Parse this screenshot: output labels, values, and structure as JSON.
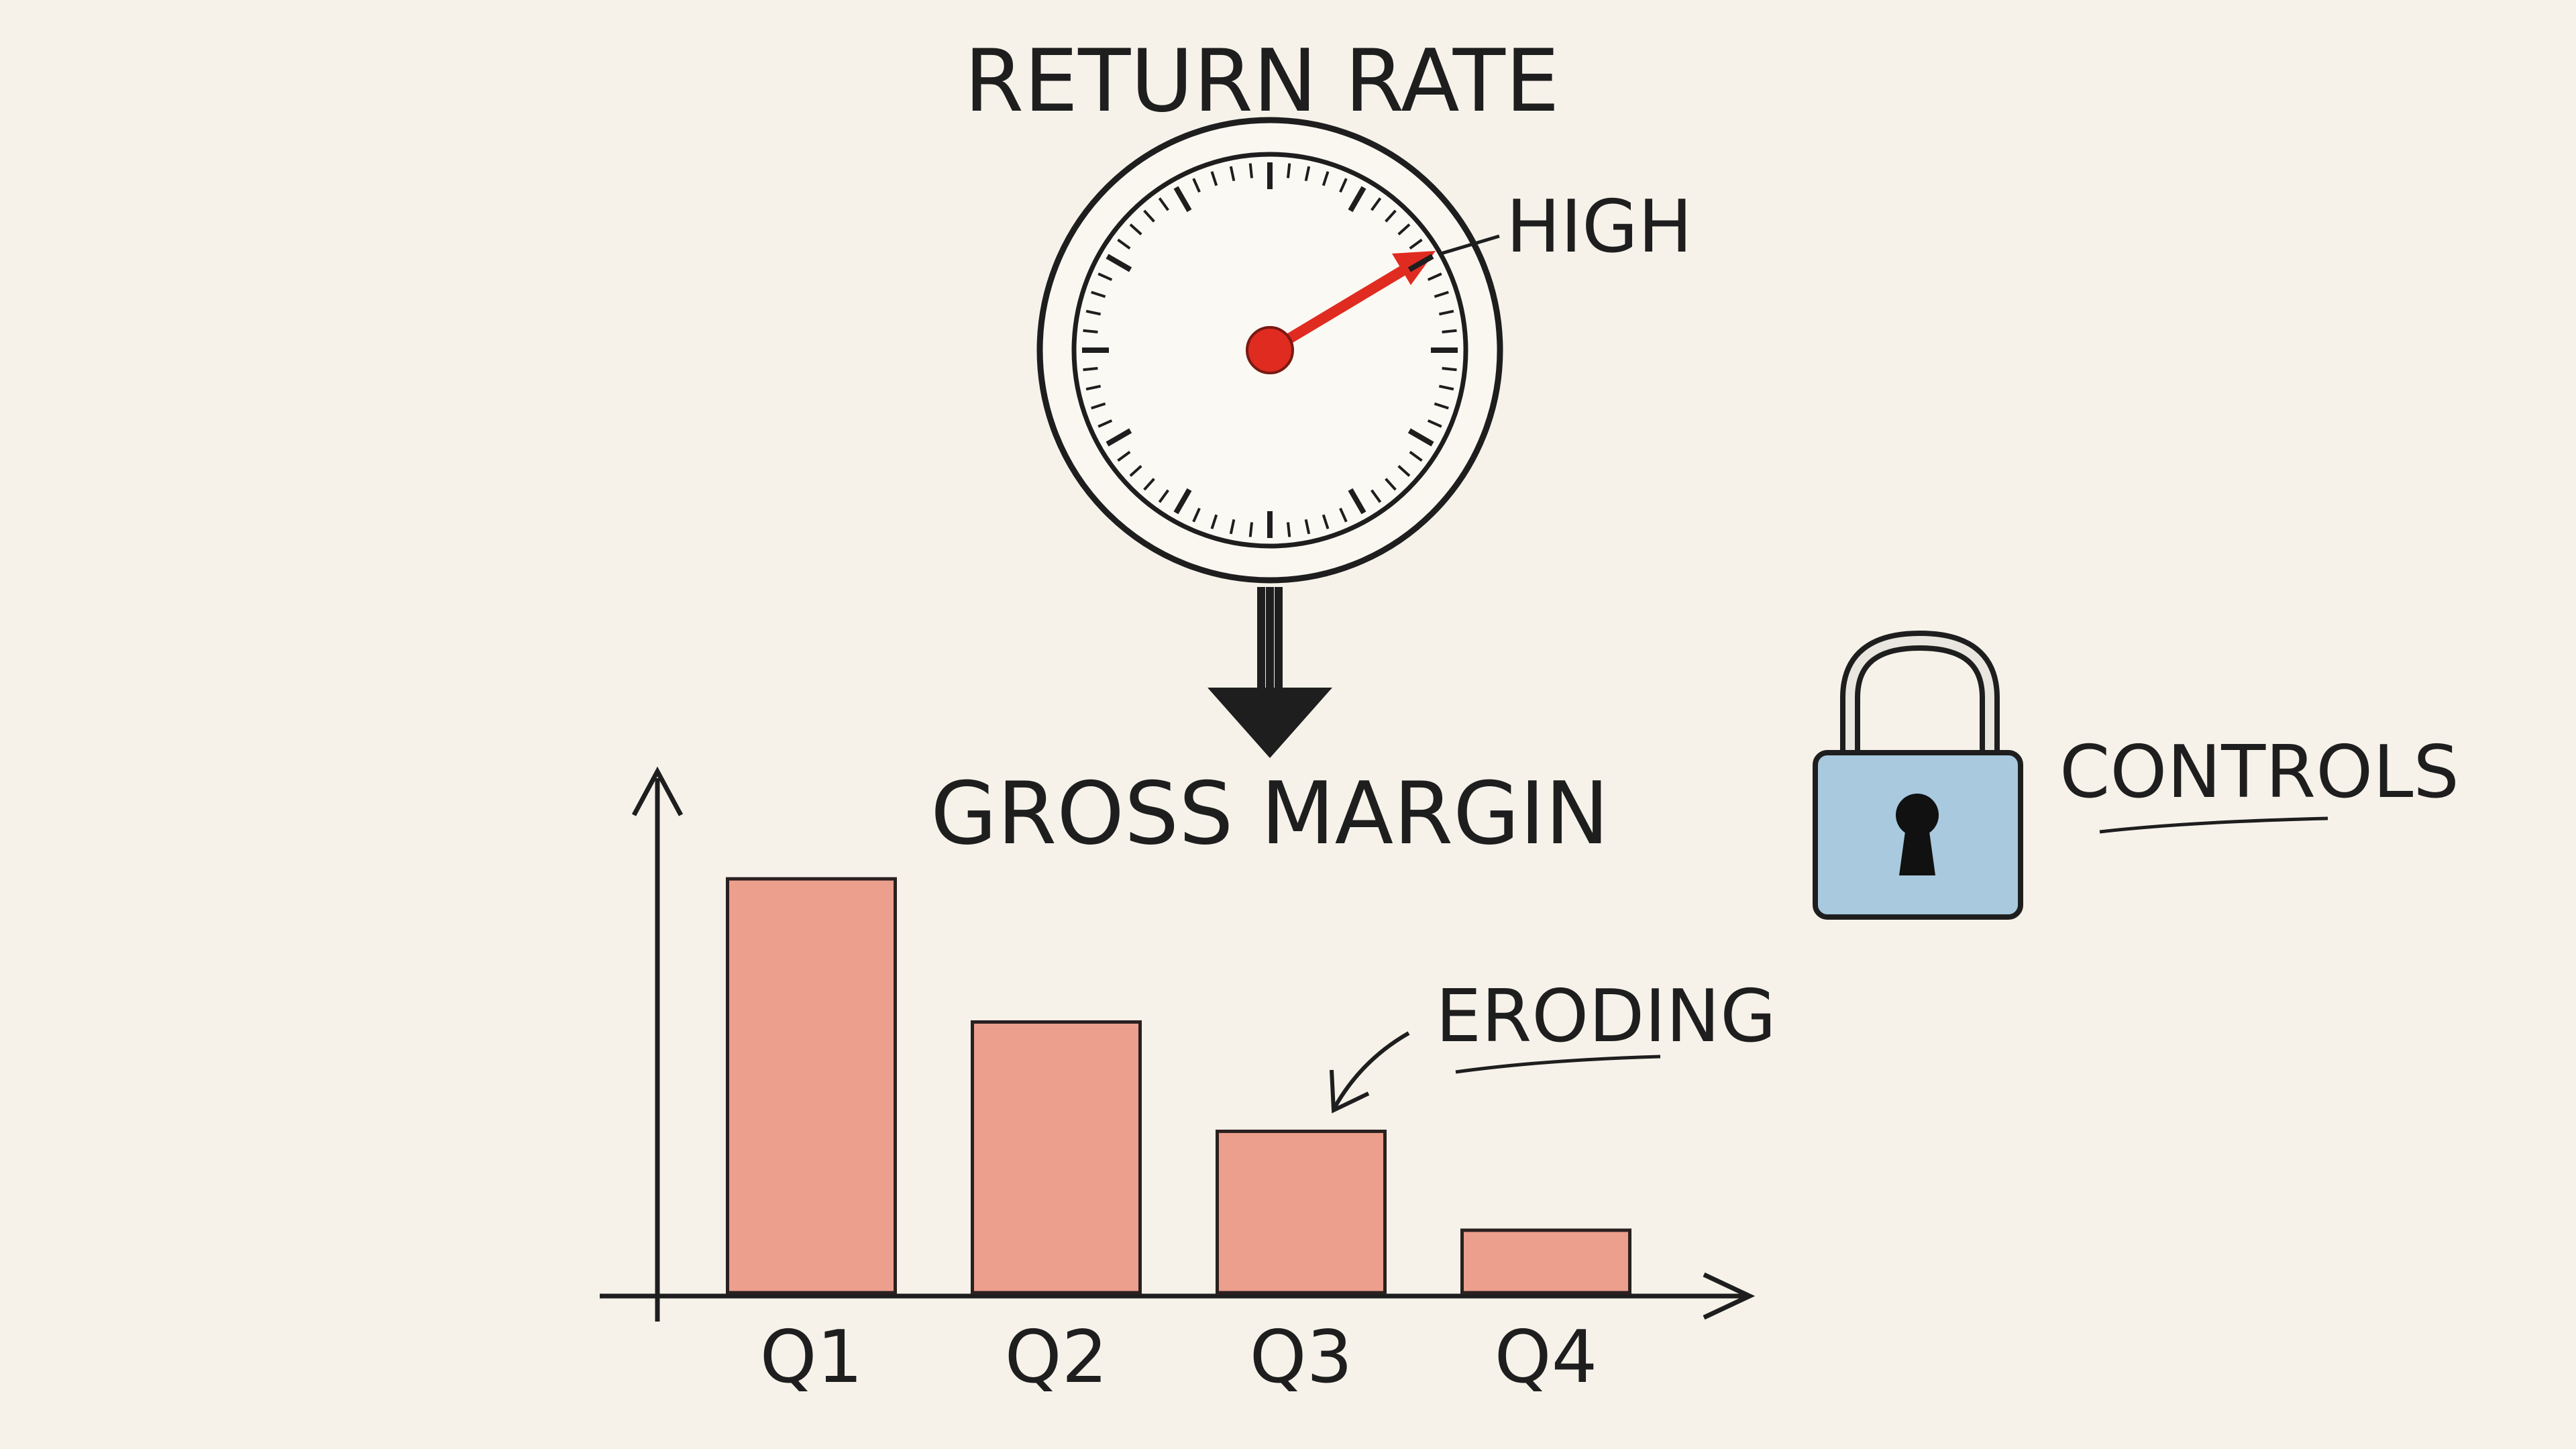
{
  "gauge": {
    "title": "RETURN RATE",
    "label": "HIGH"
  },
  "chart_data": {
    "type": "bar",
    "title": "GROSS MARGIN",
    "categories": [
      "Q1",
      "Q2",
      "Q3",
      "Q4"
    ],
    "values": [
      79.5,
      52,
      31,
      12
    ],
    "color": "#ec9f8c",
    "ylim": [
      0,
      100
    ],
    "annotation": "ERODING"
  },
  "lock": {
    "label": "CONTROLS"
  }
}
